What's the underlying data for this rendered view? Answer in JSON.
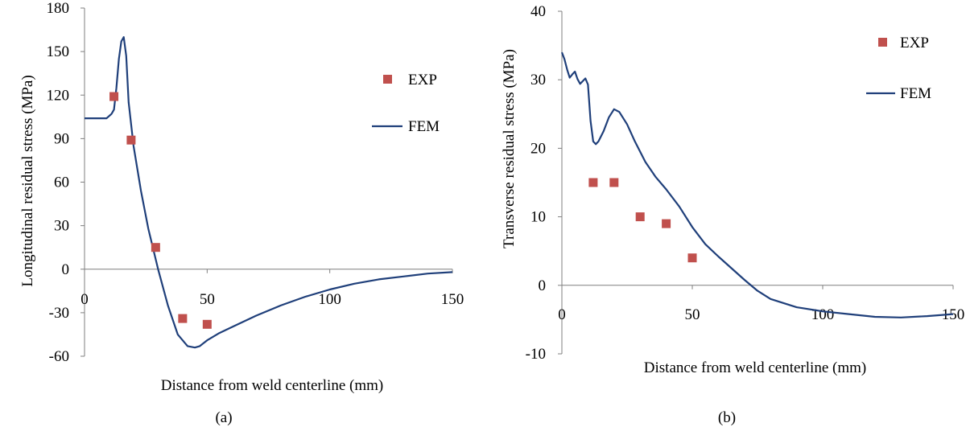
{
  "chart_data": [
    {
      "type": "line",
      "panel_label": "(a)",
      "xlabel": "Distance from weld centerline (mm)",
      "ylabel": "Longitudinal residual stress (MPa)",
      "xlim": [
        0,
        150
      ],
      "ylim": [
        -60,
        180
      ],
      "xticks": [
        0,
        50,
        100,
        150
      ],
      "yticks": [
        -60,
        -30,
        0,
        30,
        60,
        90,
        120,
        150,
        180
      ],
      "xtick_labels": [
        "0",
        "50",
        "100",
        "150"
      ],
      "ytick_labels": [
        "-60",
        "-30",
        "0",
        "30",
        "60",
        "90",
        "120",
        "150",
        "180"
      ],
      "grid": false,
      "legend_position": "top-right",
      "series": [
        {
          "name": "EXP",
          "type": "scatter",
          "color": "#c0504d",
          "x": [
            12,
            19,
            29,
            40,
            50
          ],
          "y": [
            119,
            89,
            15,
            -34,
            -38
          ]
        },
        {
          "name": "FEM",
          "type": "line",
          "color": "#1f3f7a",
          "x": [
            0,
            5,
            9,
            11,
            12,
            13,
            14,
            15,
            16,
            17,
            18,
            20,
            23,
            26,
            30,
            34,
            38,
            42,
            45,
            47,
            50,
            55,
            60,
            70,
            80,
            90,
            100,
            110,
            120,
            130,
            140,
            150
          ],
          "y": [
            104,
            104,
            104,
            107,
            110,
            125,
            145,
            157,
            160,
            147,
            115,
            85,
            54,
            28,
            0,
            -25,
            -45,
            -53,
            -54,
            -53,
            -49,
            -44,
            -40,
            -32,
            -25,
            -19,
            -14,
            -10,
            -7,
            -5,
            -3,
            -2
          ]
        }
      ]
    },
    {
      "type": "line",
      "panel_label": "(b)",
      "xlabel": "Distance from weld centerline (mm)",
      "ylabel": "Transverse residual stress (MPa)",
      "xlim": [
        0,
        150
      ],
      "ylim": [
        -10,
        40
      ],
      "xticks": [
        0,
        50,
        100,
        150
      ],
      "yticks": [
        -10,
        0,
        10,
        20,
        30,
        40
      ],
      "xtick_labels": [
        "0",
        "50",
        "100",
        "150"
      ],
      "ytick_labels": [
        "-10",
        "0",
        "10",
        "20",
        "30",
        "40"
      ],
      "grid": false,
      "legend_position": "top-right",
      "series": [
        {
          "name": "EXP",
          "type": "scatter",
          "color": "#c0504d",
          "x": [
            12,
            20,
            30,
            40,
            50
          ],
          "y": [
            15,
            15,
            10,
            9,
            4
          ]
        },
        {
          "name": "FEM",
          "type": "line",
          "color": "#1f3f7a",
          "x": [
            0,
            1,
            2,
            3,
            4,
            5,
            6,
            7,
            8,
            9,
            10,
            11,
            12,
            13,
            14,
            16,
            18,
            20,
            22,
            25,
            28,
            32,
            36,
            40,
            45,
            50,
            55,
            60,
            65,
            70,
            75,
            80,
            90,
            100,
            110,
            120,
            130,
            140,
            150
          ],
          "y": [
            34,
            33,
            31.5,
            30.3,
            30.8,
            31.2,
            30.1,
            29.4,
            29.8,
            30.2,
            29.3,
            24,
            21,
            20.6,
            21,
            22.5,
            24.5,
            25.7,
            25.3,
            23.5,
            21,
            18,
            15.8,
            14,
            11.5,
            8.5,
            6,
            4.2,
            2.5,
            0.8,
            -0.8,
            -2,
            -3.2,
            -3.8,
            -4.2,
            -4.6,
            -4.7,
            -4.5,
            -4.2
          ]
        }
      ]
    }
  ]
}
